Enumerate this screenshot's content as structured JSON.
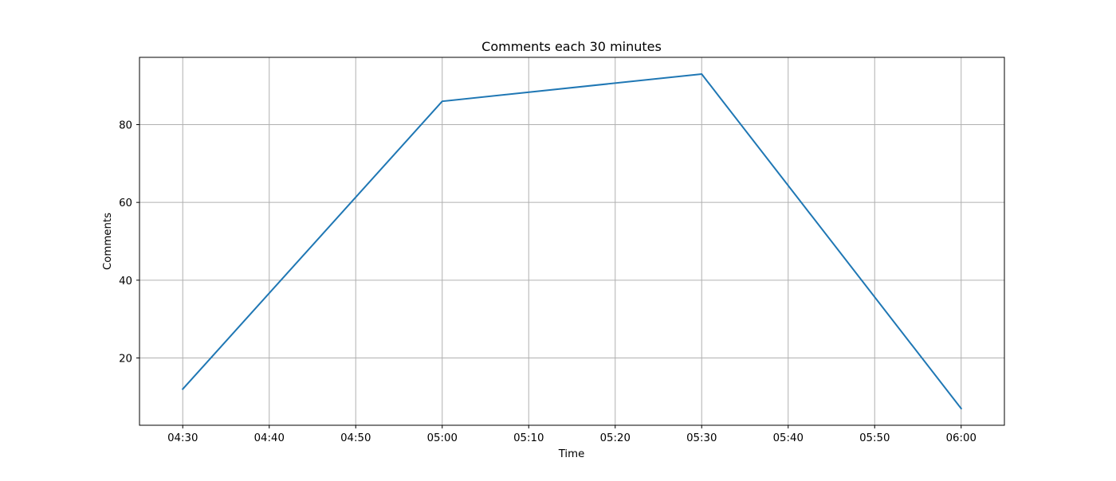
{
  "chart_data": {
    "type": "line",
    "title": "Comments each 30 minutes",
    "xlabel": "Time",
    "ylabel": "Comments",
    "x_tick_labels": [
      "04:30",
      "04:40",
      "04:50",
      "05:00",
      "05:10",
      "05:20",
      "05:30",
      "05:40",
      "05:50",
      "06:00"
    ],
    "y_tick_values": [
      20,
      40,
      60,
      80
    ],
    "xlim": [
      "04:25",
      "06:05"
    ],
    "ylim": [
      2.7,
      97.3
    ],
    "grid": true,
    "series": [
      {
        "color": "#1f77b4",
        "x": [
          "04:30",
          "05:00",
          "05:30",
          "06:00"
        ],
        "values": [
          12,
          86,
          93,
          7
        ]
      }
    ]
  }
}
